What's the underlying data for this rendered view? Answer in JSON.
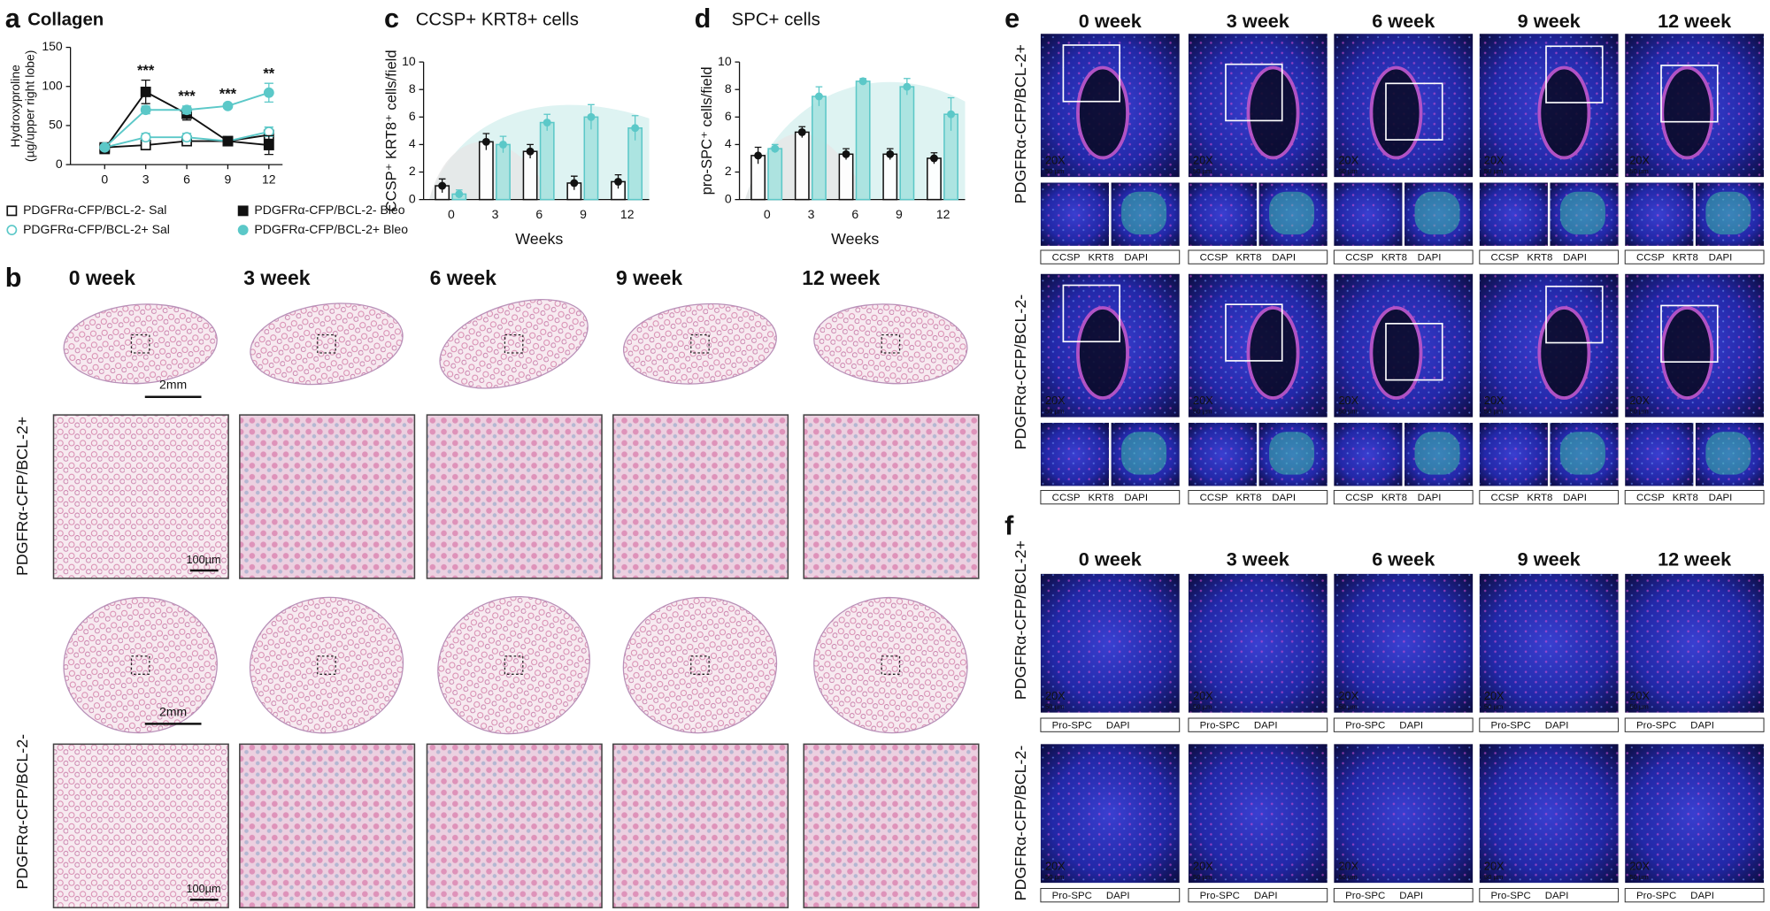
{
  "chart_data": [
    {
      "type": "line",
      "panel": "a",
      "title": "Collagen",
      "ylabel": [
        "Hydroxyproline",
        "(µg/upper right lobe)"
      ],
      "x": [
        0,
        3,
        6,
        9,
        12
      ],
      "xlim": [
        -2.5,
        13
      ],
      "xticks": [
        0,
        3,
        6,
        9,
        12
      ],
      "ylim": [
        0,
        150
      ],
      "yticks": [
        0,
        50,
        100,
        150
      ],
      "legend": "below",
      "series": [
        {
          "name": "PDGFRα-CFP/BCL-2- Sal",
          "color": "#111111",
          "marker": "square",
          "filled": false,
          "values": [
            22,
            25,
            30,
            30,
            38
          ],
          "errors": [
            3,
            6,
            4,
            3,
            6
          ]
        },
        {
          "name": "PDGFRα-CFP/BCL-2+ Sal",
          "color": "#5bc8c8",
          "marker": "circle",
          "filled": false,
          "values": [
            22,
            35,
            35,
            30,
            42
          ],
          "errors": [
            3,
            5,
            5,
            3,
            6
          ]
        },
        {
          "name": "PDGFRα-CFP/BCL-2- Bleo",
          "color": "#111111",
          "marker": "square",
          "filled": true,
          "values": [
            20,
            93,
            65,
            30,
            25
          ],
          "errors": [
            3,
            15,
            8,
            3,
            12
          ]
        },
        {
          "name": "PDGFRα-CFP/BCL-2+ Bleo",
          "color": "#5bc8c8",
          "marker": "circle",
          "filled": true,
          "values": [
            22,
            70,
            70,
            75,
            92
          ],
          "errors": [
            3,
            5,
            5,
            3,
            12
          ]
        }
      ],
      "annotations": [
        {
          "x": 3,
          "text": "***"
        },
        {
          "x": 6,
          "text": "***"
        },
        {
          "x": 9,
          "text": "***"
        },
        {
          "x": 12,
          "text": "**"
        }
      ]
    },
    {
      "type": "bar",
      "panel": "c",
      "title": "CCSP+ KRT8+ cells",
      "ylabel": "CCSP⁺ KRT8⁺ cells/field",
      "xlabel": "Weeks",
      "categories": [
        "0",
        "3",
        "6",
        "9",
        "12"
      ],
      "ylim": [
        0,
        10
      ],
      "yticks": [
        0,
        2,
        4,
        6,
        8,
        10
      ],
      "series": [
        {
          "color": "#111111",
          "values": [
            1,
            4.2,
            3.5,
            1.2,
            1.3
          ],
          "errors": [
            0.5,
            0.6,
            0.5,
            0.5,
            0.5
          ]
        },
        {
          "color": "#5bc8c8",
          "values": [
            0.4,
            4,
            5.6,
            6,
            5.2
          ],
          "errors": [
            0.3,
            0.6,
            0.6,
            0.9,
            0.9
          ]
        }
      ]
    },
    {
      "type": "bar",
      "panel": "d",
      "title": "SPC+ cells",
      "ylabel": "pro-SPC⁺ cells/field",
      "xlabel": "Weeks",
      "categories": [
        "0",
        "3",
        "6",
        "9",
        "12"
      ],
      "ylim": [
        0,
        10
      ],
      "yticks": [
        0,
        2,
        4,
        6,
        8,
        10
      ],
      "series": [
        {
          "color": "#111111",
          "values": [
            3.2,
            4.9,
            3.3,
            3.3,
            3
          ],
          "errors": [
            0.6,
            0.4,
            0.4,
            0.4,
            0.4
          ]
        },
        {
          "color": "#5bc8c8",
          "values": [
            3.7,
            7.5,
            8.6,
            8.2,
            6.2
          ],
          "errors": [
            0.3,
            0.7,
            0.2,
            0.6,
            1.2
          ]
        }
      ]
    }
  ],
  "figure": {
    "panel_labels": [
      "a",
      "b",
      "c",
      "d",
      "e",
      "f"
    ],
    "time_headers": [
      "0 week",
      "3 week",
      "6 week",
      "9 week",
      "12 week"
    ],
    "genotypes": [
      "PDGFRα-CFP/BCL-2+",
      "PDGFRα-CFP/BCL-2-"
    ],
    "scale_lobe": "2mm",
    "scale_zoom": "100µm",
    "magnification": "20X",
    "scale_fluor": "50 µm",
    "stains_e": [
      "CCSP",
      "KRT8",
      "DAPI"
    ],
    "stains_f": [
      "Pro-SPC",
      "DAPI"
    ]
  }
}
